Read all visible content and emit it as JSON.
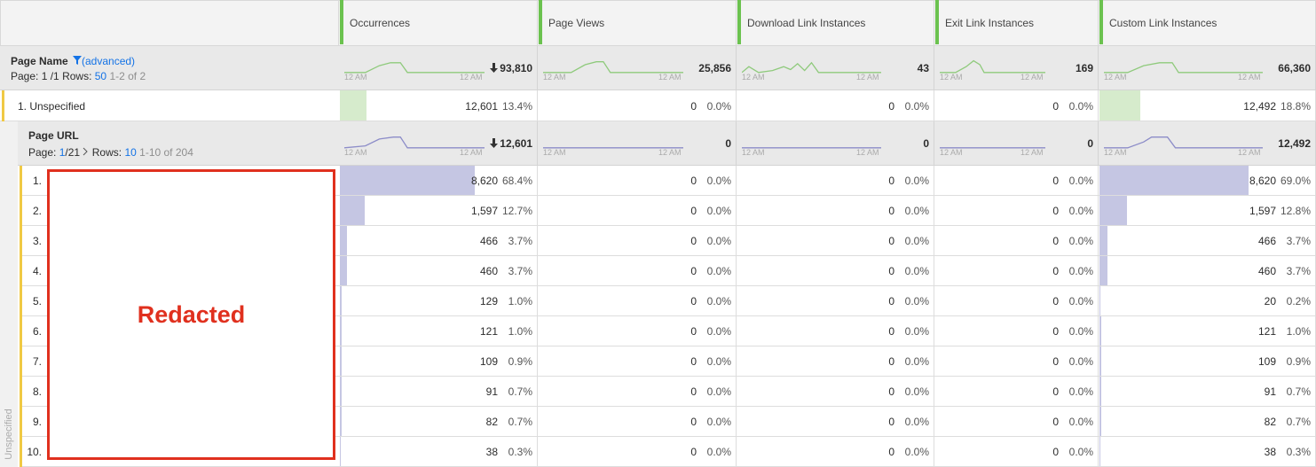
{
  "columns": [
    "Occurrences",
    "Page Views",
    "Download Link Instances",
    "Exit Link Instances",
    "Custom Link Instances"
  ],
  "dimension": {
    "name": "Page Name",
    "filter": "(advanced)",
    "page_label": "Page:",
    "page": "1 /1",
    "rows_label": "Rows:",
    "rows": "50",
    "range": "1-2 of 2"
  },
  "totals": [
    {
      "value": "93,810",
      "start": "12 AM",
      "end": "12 AM"
    },
    {
      "value": "25,856",
      "start": "12 AM",
      "end": "12 AM"
    },
    {
      "value": "43",
      "start": "12 AM",
      "end": "12 AM"
    },
    {
      "value": "169",
      "start": "12 AM",
      "end": "12 AM"
    },
    {
      "value": "66,360",
      "start": "12 AM",
      "end": "12 AM"
    }
  ],
  "rows": [
    {
      "label": "1. Unspecified",
      "cells": [
        {
          "value": "12,601",
          "percent": "13.4%"
        },
        {
          "value": "0",
          "percent": "0.0%"
        },
        {
          "value": "0",
          "percent": "0.0%"
        },
        {
          "value": "0",
          "percent": "0.0%"
        },
        {
          "value": "12,492",
          "percent": "18.8%"
        }
      ]
    }
  ],
  "breakdown": {
    "parent": "Unspecified",
    "redacted": "Redacted",
    "dimension": {
      "name": "Page URL",
      "page_label": "Page:",
      "page_current": "1",
      "page_total": "/21",
      "rows_label": "Rows:",
      "rows": "10",
      "range": "1-10 of 204"
    },
    "totals": [
      {
        "value": "12,601",
        "start": "12 AM",
        "end": "12 AM"
      },
      {
        "value": "0",
        "start": "12 AM",
        "end": "12 AM"
      },
      {
        "value": "0",
        "start": "12 AM",
        "end": "12 AM"
      },
      {
        "value": "0",
        "start": "12 AM",
        "end": "12 AM"
      },
      {
        "value": "12,492",
        "start": "12 AM",
        "end": "12 AM"
      }
    ],
    "rows": [
      {
        "index": "1.",
        "cells": [
          {
            "value": "8,620",
            "percent": "68.4%"
          },
          {
            "value": "0",
            "percent": "0.0%"
          },
          {
            "value": "0",
            "percent": "0.0%"
          },
          {
            "value": "0",
            "percent": "0.0%"
          },
          {
            "value": "8,620",
            "percent": "69.0%"
          }
        ]
      },
      {
        "index": "2.",
        "cells": [
          {
            "value": "1,597",
            "percent": "12.7%"
          },
          {
            "value": "0",
            "percent": "0.0%"
          },
          {
            "value": "0",
            "percent": "0.0%"
          },
          {
            "value": "0",
            "percent": "0.0%"
          },
          {
            "value": "1,597",
            "percent": "12.8%"
          }
        ]
      },
      {
        "index": "3.",
        "cells": [
          {
            "value": "466",
            "percent": "3.7%"
          },
          {
            "value": "0",
            "percent": "0.0%"
          },
          {
            "value": "0",
            "percent": "0.0%"
          },
          {
            "value": "0",
            "percent": "0.0%"
          },
          {
            "value": "466",
            "percent": "3.7%"
          }
        ]
      },
      {
        "index": "4.",
        "cells": [
          {
            "value": "460",
            "percent": "3.7%"
          },
          {
            "value": "0",
            "percent": "0.0%"
          },
          {
            "value": "0",
            "percent": "0.0%"
          },
          {
            "value": "0",
            "percent": "0.0%"
          },
          {
            "value": "460",
            "percent": "3.7%"
          }
        ]
      },
      {
        "index": "5.",
        "cells": [
          {
            "value": "129",
            "percent": "1.0%"
          },
          {
            "value": "0",
            "percent": "0.0%"
          },
          {
            "value": "0",
            "percent": "0.0%"
          },
          {
            "value": "0",
            "percent": "0.0%"
          },
          {
            "value": "20",
            "percent": "0.2%"
          }
        ]
      },
      {
        "index": "6.",
        "cells": [
          {
            "value": "121",
            "percent": "1.0%"
          },
          {
            "value": "0",
            "percent": "0.0%"
          },
          {
            "value": "0",
            "percent": "0.0%"
          },
          {
            "value": "0",
            "percent": "0.0%"
          },
          {
            "value": "121",
            "percent": "1.0%"
          }
        ]
      },
      {
        "index": "7.",
        "cells": [
          {
            "value": "109",
            "percent": "0.9%"
          },
          {
            "value": "0",
            "percent": "0.0%"
          },
          {
            "value": "0",
            "percent": "0.0%"
          },
          {
            "value": "0",
            "percent": "0.0%"
          },
          {
            "value": "109",
            "percent": "0.9%"
          }
        ]
      },
      {
        "index": "8.",
        "cells": [
          {
            "value": "91",
            "percent": "0.7%"
          },
          {
            "value": "0",
            "percent": "0.0%"
          },
          {
            "value": "0",
            "percent": "0.0%"
          },
          {
            "value": "0",
            "percent": "0.0%"
          },
          {
            "value": "91",
            "percent": "0.7%"
          }
        ]
      },
      {
        "index": "9.",
        "cells": [
          {
            "value": "82",
            "percent": "0.7%"
          },
          {
            "value": "0",
            "percent": "0.0%"
          },
          {
            "value": "0",
            "percent": "0.0%"
          },
          {
            "value": "0",
            "percent": "0.0%"
          },
          {
            "value": "82",
            "percent": "0.7%"
          }
        ]
      },
      {
        "index": "10.",
        "cells": [
          {
            "value": "38",
            "percent": "0.3%"
          },
          {
            "value": "0",
            "percent": "0.0%"
          },
          {
            "value": "0",
            "percent": "0.0%"
          },
          {
            "value": "0",
            "percent": "0.0%"
          },
          {
            "value": "38",
            "percent": "0.3%"
          }
        ]
      }
    ]
  }
}
